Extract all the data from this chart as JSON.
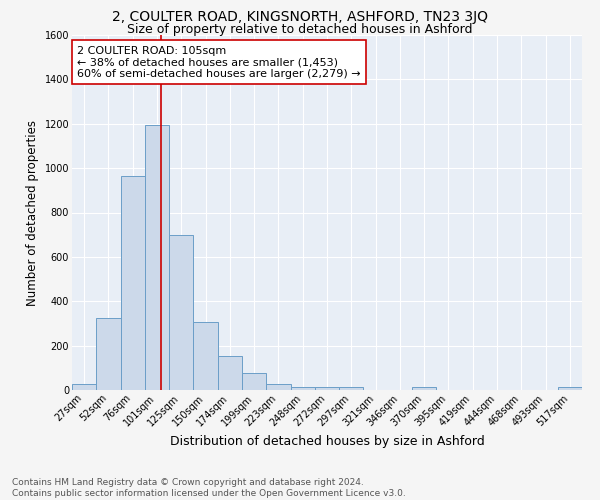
{
  "title": "2, COULTER ROAD, KINGSNORTH, ASHFORD, TN23 3JQ",
  "subtitle": "Size of property relative to detached houses in Ashford",
  "xlabel": "Distribution of detached houses by size in Ashford",
  "ylabel": "Number of detached properties",
  "bar_color": "#ccd9ea",
  "bar_edge_color": "#6b9ec8",
  "background_color": "#e8eef6",
  "grid_color": "#ffffff",
  "categories": [
    "27sqm",
    "52sqm",
    "76sqm",
    "101sqm",
    "125sqm",
    "150sqm",
    "174sqm",
    "199sqm",
    "223sqm",
    "248sqm",
    "272sqm",
    "297sqm",
    "321sqm",
    "346sqm",
    "370sqm",
    "395sqm",
    "419sqm",
    "444sqm",
    "468sqm",
    "493sqm",
    "517sqm"
  ],
  "values": [
    25,
    325,
    965,
    1195,
    700,
    305,
    155,
    78,
    25,
    15,
    15,
    15,
    0,
    0,
    13,
    0,
    0,
    0,
    0,
    0,
    13
  ],
  "ylim": [
    0,
    1600
  ],
  "yticks": [
    0,
    200,
    400,
    600,
    800,
    1000,
    1200,
    1400,
    1600
  ],
  "vline_index": 3.17,
  "vline_color": "#cc0000",
  "property_label": "2 COULTER ROAD: 105sqm",
  "annotation_line1": "← 38% of detached houses are smaller (1,453)",
  "annotation_line2": "60% of semi-detached houses are larger (2,279) →",
  "annotation_box_color": "#ffffff",
  "annotation_box_edge": "#cc0000",
  "footer_line1": "Contains HM Land Registry data © Crown copyright and database right 2024.",
  "footer_line2": "Contains public sector information licensed under the Open Government Licence v3.0.",
  "title_fontsize": 10,
  "subtitle_fontsize": 9,
  "ylabel_fontsize": 8.5,
  "xlabel_fontsize": 9,
  "tick_fontsize": 7,
  "annotation_fontsize": 8,
  "footer_fontsize": 6.5
}
